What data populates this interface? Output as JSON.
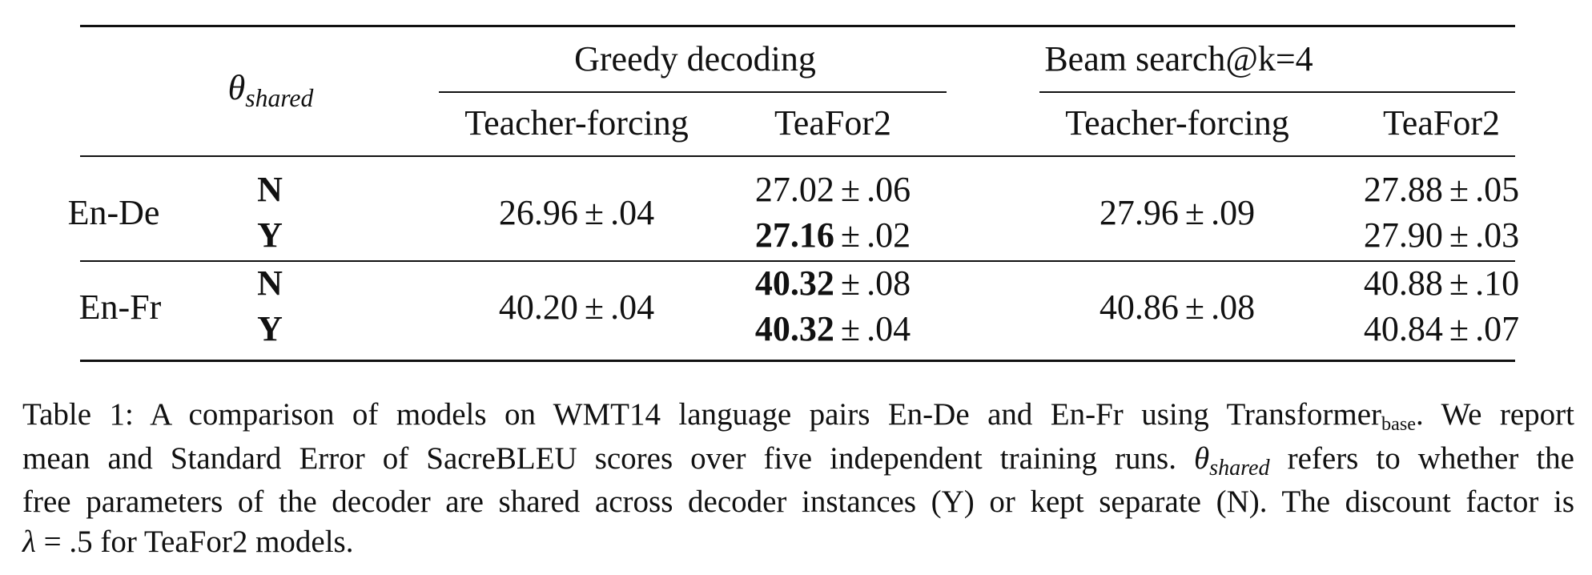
{
  "table": {
    "header": {
      "theta_symbol": "θ",
      "theta_subscript": "shared",
      "group_greedy": "Greedy decoding",
      "group_beam": "Beam search@k=4",
      "col_teacher_forcing": "Teacher-forcing",
      "col_teafor2": "TeaFor2"
    },
    "pm": "±",
    "rows": {
      "ende": {
        "label": "En-De",
        "shared": [
          "N",
          "Y"
        ],
        "greedy_tf": {
          "mean": "26.96",
          "se": ".04"
        },
        "greedy_teafor2": [
          {
            "mean": "27.02",
            "se": ".06",
            "bold": false
          },
          {
            "mean": "27.16",
            "se": ".02",
            "bold": true
          }
        ],
        "beam_tf": {
          "mean": "27.96",
          "se": ".09"
        },
        "beam_teafor2": [
          {
            "mean": "27.88",
            "se": ".05"
          },
          {
            "mean": "27.90",
            "se": ".03"
          }
        ]
      },
      "enfr": {
        "label": "En-Fr",
        "shared": [
          "N",
          "Y"
        ],
        "greedy_tf": {
          "mean": "40.20",
          "se": ".04"
        },
        "greedy_teafor2": [
          {
            "mean": "40.32",
            "se": ".08",
            "bold": true
          },
          {
            "mean": "40.32",
            "se": ".04",
            "bold": true
          }
        ],
        "beam_tf": {
          "mean": "40.86",
          "se": ".08"
        },
        "beam_teafor2": [
          {
            "mean": "40.88",
            "se": ".10"
          },
          {
            "mean": "40.84",
            "se": ".07"
          }
        ]
      }
    }
  },
  "caption": {
    "l1_a": "Table 1: A comparison of models on WMT14 language pairs En-De and En-Fr using Transformer",
    "l1_sub": "base",
    "l1_b": ". We report",
    "l2_a": "mean and Standard Error of SacreBLEU scores over five independent training runs.",
    "l2_theta": "θ",
    "l2_theta_sub": "shared",
    "l2_b": "refers to whether the",
    "l3": "free parameters of the decoder are shared across decoder instances (Y) or kept separate (N). The discount factor is",
    "l4_lambda": "λ",
    "l4_eq": " = .5",
    "l4_b": " for TeaFor2 models."
  }
}
